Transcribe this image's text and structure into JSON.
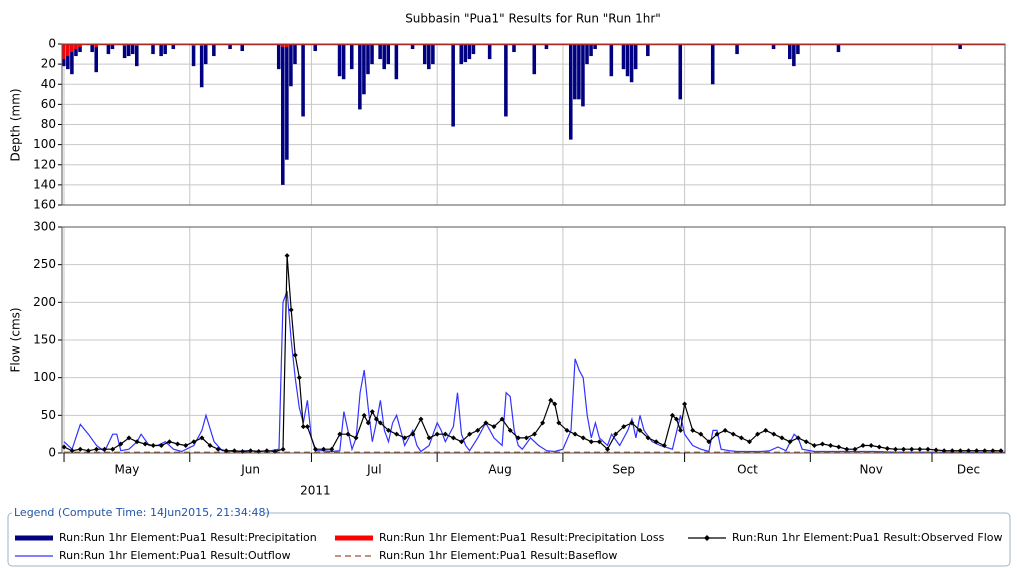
{
  "chart_data": [
    {
      "type": "bar",
      "title": "Subbasin \"Pua1\" Results for Run \"Run 1hr\"",
      "y_label": "Depth (mm)",
      "xlim": [
        -0.5,
        232
      ],
      "ylim": [
        0,
        160
      ],
      "y_inverted": true,
      "yticks": [
        0,
        20,
        40,
        60,
        80,
        100,
        120,
        140,
        160
      ],
      "grid": true,
      "series": [
        {
          "name": "Run:Run 1hr Element:Pua1 Result:Precipitation",
          "color": "#000080",
          "x": [
            0,
            1,
            2,
            3,
            4,
            7,
            8,
            11,
            12,
            15,
            16,
            17,
            18,
            22,
            24,
            25,
            27,
            32,
            34,
            35,
            37,
            41,
            44,
            53,
            54,
            55,
            56,
            57,
            59,
            62,
            68,
            69,
            71,
            73,
            74,
            75,
            76,
            78,
            79,
            80,
            82,
            86,
            89,
            90,
            91,
            96,
            98,
            99,
            100,
            101,
            105,
            109,
            111,
            116,
            119,
            125,
            126,
            127,
            128,
            129,
            130,
            131,
            135,
            138,
            139,
            140,
            141,
            144,
            152,
            160,
            166,
            175,
            179,
            180,
            181,
            191,
            221
          ],
          "values": [
            22,
            25,
            30,
            12,
            8,
            8,
            28,
            10,
            5,
            14,
            12,
            10,
            22,
            10,
            12,
            10,
            5,
            22,
            43,
            20,
            12,
            5,
            7,
            25,
            140,
            115,
            42,
            20,
            72,
            7,
            32,
            35,
            25,
            65,
            50,
            30,
            20,
            15,
            25,
            20,
            35,
            5,
            20,
            25,
            20,
            82,
            20,
            18,
            15,
            10,
            15,
            72,
            8,
            30,
            5,
            95,
            55,
            55,
            62,
            20,
            12,
            5,
            32,
            25,
            32,
            38,
            25,
            12,
            55,
            40,
            10,
            5,
            15,
            22,
            10,
            8,
            5
          ]
        },
        {
          "name": "Run:Run 1hr Element:Pua1 Result:Precipitation Loss",
          "color": "#ff0000",
          "x": [
            0,
            1,
            2,
            3,
            4,
            8,
            15,
            18,
            32,
            34,
            54,
            55
          ],
          "values": [
            15,
            12,
            8,
            5,
            3,
            3,
            2,
            2,
            2,
            2,
            3,
            3
          ]
        }
      ]
    },
    {
      "type": "line",
      "y_label": "Flow (cms)",
      "xlim": [
        -0.5,
        232
      ],
      "ylim": [
        0,
        300
      ],
      "yticks": [
        0,
        50,
        100,
        150,
        200,
        250,
        300
      ],
      "xgrid": [
        0,
        31,
        61,
        92,
        123,
        153,
        184,
        214
      ],
      "xticks": [
        {
          "value": 15.5,
          "label": "May"
        },
        {
          "value": 46,
          "label": "Jun"
        },
        {
          "value": 76.5,
          "label": "Jul"
        },
        {
          "value": 107.5,
          "label": "Aug"
        },
        {
          "value": 138,
          "label": "Sep"
        },
        {
          "value": 168.5,
          "label": "Oct"
        },
        {
          "value": 199,
          "label": "Nov"
        },
        {
          "value": 223,
          "label": "Dec"
        }
      ],
      "year_label": "2011",
      "grid": true,
      "series": [
        {
          "name": "Run:Run 1hr Element:Pua1 Result:Outflow",
          "color": "#3333ff",
          "line_style": "solid",
          "x": [
            0,
            2,
            4,
            6,
            8,
            10,
            12,
            13,
            14,
            16,
            18,
            19,
            21,
            23,
            25,
            27,
            29,
            32,
            34,
            35,
            37,
            39,
            42,
            45,
            48,
            51,
            53,
            54,
            55,
            56,
            57,
            58,
            59,
            60,
            61,
            62,
            64,
            66,
            68,
            69,
            70,
            71,
            72,
            73,
            74,
            75,
            76,
            77,
            78,
            79,
            80,
            81,
            82,
            83,
            84,
            86,
            87,
            88,
            90,
            91,
            92,
            93,
            94,
            96,
            97,
            98,
            99,
            100,
            102,
            104,
            106,
            108,
            109,
            110,
            111,
            112,
            113,
            115,
            117,
            119,
            121,
            123,
            125,
            126,
            127,
            128,
            129,
            130,
            131,
            132,
            134,
            135,
            137,
            139,
            140,
            141,
            142,
            143,
            145,
            147,
            150,
            152,
            153,
            155,
            157,
            159,
            160,
            161,
            162,
            164,
            166,
            168,
            170,
            172,
            174,
            176,
            178,
            180,
            181,
            182,
            185,
            190,
            195,
            200,
            205,
            210,
            215,
            220,
            225,
            232
          ],
          "values": [
            15,
            5,
            38,
            25,
            10,
            2,
            25,
            25,
            3,
            5,
            15,
            25,
            10,
            10,
            15,
            5,
            2,
            10,
            30,
            50,
            15,
            3,
            2,
            3,
            2,
            3,
            5,
            200,
            215,
            150,
            100,
            60,
            40,
            70,
            20,
            3,
            3,
            2,
            3,
            55,
            30,
            5,
            20,
            80,
            110,
            60,
            15,
            40,
            70,
            30,
            15,
            40,
            50,
            30,
            10,
            30,
            10,
            2,
            10,
            25,
            40,
            30,
            15,
            35,
            80,
            25,
            10,
            3,
            20,
            40,
            20,
            10,
            80,
            75,
            30,
            10,
            5,
            20,
            10,
            3,
            2,
            5,
            30,
            125,
            110,
            100,
            50,
            20,
            40,
            20,
            10,
            25,
            10,
            30,
            45,
            20,
            50,
            30,
            15,
            10,
            5,
            50,
            25,
            10,
            5,
            2,
            30,
            30,
            5,
            3,
            2,
            2,
            2,
            2,
            3,
            8,
            3,
            25,
            20,
            5,
            2,
            2,
            2,
            2,
            1,
            1,
            1,
            1,
            1,
            1
          ]
        },
        {
          "name": "Run:Run 1hr Element:Pua1 Result:Baseflow",
          "color": "#a0522d",
          "line_style": "dashed",
          "x": [
            0,
            232
          ],
          "values": [
            1,
            1
          ]
        },
        {
          "name": "Run:Run 1hr Element:Pua1 Result:Observed Flow",
          "color": "#000000",
          "line_style": "solid",
          "marker": "diamond",
          "x": [
            0,
            2,
            4,
            6,
            8,
            10,
            12,
            14,
            16,
            18,
            20,
            22,
            24,
            26,
            28,
            30,
            32,
            34,
            36,
            38,
            40,
            42,
            44,
            46,
            48,
            50,
            52,
            54,
            55,
            56,
            57,
            58,
            59,
            60,
            62,
            64,
            66,
            68,
            70,
            72,
            74,
            75,
            76,
            77,
            78,
            80,
            82,
            84,
            86,
            88,
            90,
            92,
            94,
            96,
            98,
            100,
            102,
            104,
            106,
            108,
            110,
            112,
            114,
            116,
            118,
            120,
            121,
            122,
            124,
            126,
            128,
            130,
            132,
            134,
            136,
            138,
            140,
            142,
            144,
            146,
            148,
            150,
            151,
            152,
            153,
            155,
            157,
            159,
            161,
            163,
            165,
            167,
            169,
            171,
            173,
            175,
            177,
            179,
            181,
            183,
            185,
            187,
            189,
            191,
            193,
            195,
            197,
            199,
            201,
            203,
            205,
            207,
            209,
            211,
            213,
            215,
            217,
            219,
            221,
            223,
            225,
            227,
            229,
            231
          ],
          "values": [
            8,
            3,
            5,
            3,
            5,
            5,
            5,
            12,
            20,
            15,
            12,
            10,
            10,
            15,
            12,
            10,
            15,
            20,
            10,
            5,
            3,
            3,
            2,
            3,
            2,
            3,
            2,
            5,
            262,
            190,
            130,
            100,
            35,
            35,
            5,
            5,
            5,
            25,
            25,
            20,
            50,
            40,
            55,
            45,
            40,
            30,
            25,
            20,
            25,
            45,
            20,
            25,
            25,
            20,
            15,
            25,
            30,
            40,
            35,
            45,
            30,
            20,
            20,
            25,
            40,
            70,
            65,
            40,
            30,
            25,
            20,
            15,
            15,
            5,
            25,
            35,
            40,
            30,
            20,
            15,
            10,
            50,
            45,
            30,
            65,
            30,
            25,
            15,
            25,
            30,
            25,
            20,
            15,
            25,
            30,
            25,
            20,
            15,
            20,
            15,
            10,
            12,
            10,
            8,
            5,
            5,
            10,
            10,
            8,
            6,
            5,
            5,
            5,
            5,
            5,
            4,
            3,
            3,
            3,
            3,
            3,
            3,
            3,
            3
          ]
        }
      ]
    }
  ],
  "legend": {
    "title": "Legend (Compute Time: 14Jun2015, 21:34:48)"
  }
}
